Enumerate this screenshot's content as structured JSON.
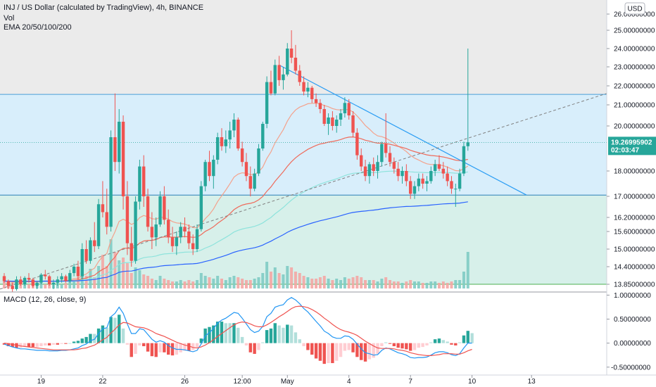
{
  "header": {
    "title": "INJ / US Dollar (calculated by TradingView), 4h, BINANCE",
    "indicator_vol": "Vol",
    "indicator_ema": "EMA 20/50/100/200",
    "currency_badge": "USD"
  },
  "macd_legend": "MACD (12, 26, close, 9)",
  "price_tag": {
    "value": "19.26995902",
    "countdown": "02:03:47"
  },
  "colors": {
    "up": "#26a69a",
    "down": "#ef5350",
    "up_light": "#b2dfdb",
    "down_light": "#ffcdd2",
    "ema20": "#f4a28c",
    "ema50": "#ef6b5b",
    "ema100": "#8ee3dc",
    "ema200": "#2962ff",
    "trend": "#2a9df4",
    "zone_top": "#e6f3fc",
    "zone_mid": "#d8eefb",
    "zone_low": "#d7f0ea",
    "macd": "#2196f3",
    "signal": "#ef5350"
  },
  "chart_data": [
    {
      "type": "candlestick",
      "title": "INJ / US Dollar (calculated by TradingView), 4h, BINANCE",
      "ylim": [
        13.6,
        26.2
      ],
      "y_ticks": [
        "26.00000000",
        "25.00000000",
        "24.00000000",
        "23.00000000",
        "22.00000000",
        "21.00000000",
        "20.00000000",
        "18.00000000",
        "17.00000000",
        "16.20000000",
        "15.60000000",
        "15.00000000",
        "14.40000000",
        "13.85000000"
      ],
      "x_ticks": [
        "19",
        "22",
        "26",
        "12:00",
        "May",
        "4",
        "7",
        "10",
        "13"
      ],
      "last_price": 19.26995902,
      "horizontal_levels": [
        21.55,
        17.05,
        13.85
      ],
      "candles": [
        [
          14.1,
          14.2,
          13.9,
          13.95
        ],
        [
          13.95,
          14.0,
          13.7,
          13.8
        ],
        [
          13.8,
          13.9,
          13.6,
          13.7
        ],
        [
          13.7,
          14.1,
          13.65,
          14.0
        ],
        [
          14.0,
          14.1,
          13.8,
          13.85
        ],
        [
          13.85,
          14.1,
          13.8,
          14.05
        ],
        [
          14.05,
          14.2,
          13.9,
          14.0
        ],
        [
          14.0,
          14.05,
          13.75,
          13.8
        ],
        [
          13.8,
          13.95,
          13.7,
          13.9
        ],
        [
          13.9,
          14.2,
          13.85,
          14.15
        ],
        [
          14.15,
          14.3,
          14.0,
          14.1
        ],
        [
          14.1,
          14.15,
          13.8,
          13.85
        ],
        [
          13.85,
          14.0,
          13.7,
          13.9
        ],
        [
          13.9,
          14.1,
          13.8,
          14.0
        ],
        [
          14.0,
          14.2,
          13.9,
          14.1
        ],
        [
          14.1,
          14.15,
          13.9,
          13.95
        ],
        [
          13.95,
          14.3,
          13.9,
          14.2
        ],
        [
          14.2,
          14.5,
          14.1,
          14.4
        ],
        [
          14.4,
          14.6,
          14.0,
          14.1
        ],
        [
          14.1,
          15.2,
          14.0,
          15.0
        ],
        [
          15.0,
          15.3,
          14.5,
          14.6
        ],
        [
          14.6,
          15.4,
          14.5,
          15.3
        ],
        [
          15.3,
          16.0,
          14.9,
          15.1
        ],
        [
          15.1,
          16.9,
          15.0,
          16.7
        ],
        [
          16.7,
          17.6,
          16.2,
          16.4
        ],
        [
          16.4,
          17.3,
          15.5,
          15.8
        ],
        [
          15.8,
          19.8,
          15.6,
          19.5
        ],
        [
          19.5,
          21.6,
          18.0,
          18.4
        ],
        [
          18.4,
          20.8,
          17.9,
          20.2
        ],
        [
          20.2,
          20.5,
          16.5,
          17.0
        ],
        [
          17.0,
          17.6,
          14.8,
          15.2
        ],
        [
          15.2,
          15.8,
          14.4,
          14.6
        ],
        [
          14.6,
          17.0,
          14.5,
          16.8
        ],
        [
          16.8,
          18.5,
          16.5,
          18.2
        ],
        [
          18.2,
          18.7,
          16.6,
          17.0
        ],
        [
          17.0,
          17.3,
          15.6,
          15.8
        ],
        [
          15.8,
          16.4,
          15.0,
          15.4
        ],
        [
          15.4,
          16.2,
          15.1,
          15.9
        ],
        [
          15.9,
          17.2,
          15.8,
          17.0
        ],
        [
          17.0,
          17.4,
          15.9,
          16.1
        ],
        [
          16.1,
          16.5,
          15.2,
          15.4
        ],
        [
          15.4,
          15.8,
          14.9,
          15.1
        ],
        [
          15.1,
          15.6,
          14.8,
          15.4
        ],
        [
          15.4,
          16.0,
          15.2,
          15.8
        ],
        [
          15.8,
          16.2,
          15.4,
          15.6
        ],
        [
          15.6,
          15.9,
          15.0,
          15.2
        ],
        [
          15.2,
          15.5,
          14.8,
          15.0
        ],
        [
          15.0,
          15.9,
          14.9,
          15.7
        ],
        [
          15.7,
          17.6,
          15.6,
          17.4
        ],
        [
          17.4,
          18.5,
          17.2,
          18.4
        ],
        [
          18.4,
          18.9,
          17.6,
          17.8
        ],
        [
          17.8,
          18.7,
          17.3,
          18.5
        ],
        [
          18.5,
          19.7,
          18.3,
          19.5
        ],
        [
          19.5,
          19.9,
          18.9,
          19.1
        ],
        [
          19.1,
          19.8,
          18.8,
          19.4
        ],
        [
          19.4,
          20.2,
          19.0,
          19.8
        ],
        [
          19.8,
          20.6,
          19.5,
          20.3
        ],
        [
          20.3,
          20.4,
          18.9,
          19.0
        ],
        [
          19.0,
          19.3,
          18.2,
          18.4
        ],
        [
          18.4,
          18.8,
          17.6,
          17.8
        ],
        [
          17.8,
          18.2,
          17.0,
          17.3
        ],
        [
          17.3,
          18.1,
          17.2,
          17.9
        ],
        [
          17.9,
          19.2,
          17.8,
          19.0
        ],
        [
          19.0,
          20.2,
          18.9,
          20.1
        ],
        [
          20.1,
          22.5,
          19.9,
          22.2
        ],
        [
          22.2,
          22.8,
          21.5,
          21.6
        ],
        [
          21.6,
          23.4,
          21.5,
          23.1
        ],
        [
          23.1,
          23.6,
          22.0,
          22.3
        ],
        [
          22.3,
          23.0,
          21.8,
          22.6
        ],
        [
          22.6,
          24.3,
          22.5,
          24.0
        ],
        [
          24.0,
          25.0,
          23.2,
          23.5
        ],
        [
          23.5,
          24.2,
          22.6,
          22.8
        ],
        [
          22.8,
          23.1,
          22.0,
          22.2
        ],
        [
          22.2,
          22.5,
          21.5,
          21.7
        ],
        [
          21.7,
          22.2,
          21.4,
          21.9
        ],
        [
          21.9,
          22.0,
          21.1,
          21.3
        ],
        [
          21.3,
          21.6,
          20.9,
          21.1
        ],
        [
          21.1,
          21.3,
          20.6,
          20.8
        ],
        [
          20.8,
          21.0,
          20.0,
          20.1
        ],
        [
          20.1,
          20.6,
          19.6,
          20.4
        ],
        [
          20.4,
          20.7,
          19.8,
          20.0
        ],
        [
          20.0,
          20.5,
          19.7,
          20.3
        ],
        [
          20.3,
          20.8,
          20.0,
          20.6
        ],
        [
          20.6,
          21.4,
          20.4,
          21.1
        ],
        [
          21.1,
          21.3,
          20.3,
          20.5
        ],
        [
          20.5,
          20.7,
          19.5,
          19.7
        ],
        [
          19.7,
          19.9,
          18.5,
          18.7
        ],
        [
          18.7,
          19.0,
          18.0,
          18.2
        ],
        [
          18.2,
          18.5,
          17.6,
          17.8
        ],
        [
          17.8,
          18.4,
          17.5,
          18.3
        ],
        [
          18.3,
          18.6,
          17.8,
          18.0
        ],
        [
          18.0,
          18.7,
          17.7,
          18.4
        ],
        [
          18.4,
          19.3,
          18.2,
          19.2
        ],
        [
          19.2,
          20.6,
          18.6,
          18.8
        ],
        [
          18.8,
          19.1,
          18.2,
          18.4
        ],
        [
          18.4,
          18.6,
          17.9,
          18.1
        ],
        [
          18.1,
          18.4,
          17.6,
          17.8
        ],
        [
          17.8,
          18.2,
          17.5,
          18.0
        ],
        [
          18.0,
          18.3,
          17.4,
          17.6
        ],
        [
          17.6,
          17.8,
          16.9,
          17.1
        ],
        [
          17.1,
          17.6,
          16.9,
          17.4
        ],
        [
          17.4,
          17.9,
          17.2,
          17.7
        ],
        [
          17.7,
          17.9,
          17.3,
          17.5
        ],
        [
          17.5,
          17.8,
          17.2,
          17.6
        ],
        [
          17.6,
          18.2,
          17.5,
          18.0
        ],
        [
          18.0,
          18.5,
          17.8,
          18.3
        ],
        [
          18.3,
          18.7,
          18.0,
          18.1
        ],
        [
          18.1,
          18.4,
          17.7,
          17.9
        ],
        [
          17.9,
          18.2,
          17.4,
          17.6
        ],
        [
          17.6,
          17.8,
          17.1,
          17.3
        ],
        [
          17.3,
          17.5,
          16.6,
          17.3
        ],
        [
          17.3,
          18.1,
          17.2,
          17.9
        ],
        [
          17.9,
          19.3,
          17.8,
          19.1
        ],
        [
          19.1,
          24.0,
          18.9,
          19.27
        ]
      ],
      "volume": [
        0.9,
        0.5,
        0.4,
        0.3,
        0.4,
        0.5,
        0.3,
        0.4,
        0.3,
        0.4,
        0.3,
        0.5,
        0.3,
        0.4,
        0.3,
        0.4,
        0.6,
        0.5,
        0.8,
        1.2,
        0.9,
        1.4,
        0.8,
        1.6,
        2.4,
        1.6,
        3.5,
        2.6,
        2.0,
        2.2,
        1.8,
        1.1,
        1.5,
        1.3,
        1.0,
        0.9,
        0.7,
        0.6,
        0.9,
        0.7,
        0.6,
        0.5,
        0.5,
        0.6,
        0.5,
        0.6,
        0.5,
        0.6,
        1.1,
        0.9,
        0.8,
        0.7,
        0.9,
        0.7,
        0.6,
        0.8,
        0.9,
        0.8,
        0.7,
        0.6,
        0.6,
        0.7,
        0.8,
        1.1,
        1.9,
        1.2,
        1.5,
        1.1,
        1.0,
        1.6,
        1.5,
        1.2,
        1.1,
        0.9,
        0.8,
        0.7,
        0.7,
        0.8,
        0.9,
        0.7,
        0.6,
        0.7,
        0.6,
        0.8,
        0.7,
        0.8,
        0.9,
        0.8,
        0.6,
        0.6,
        0.6,
        0.5,
        0.7,
        0.8,
        0.6,
        0.5,
        0.5,
        0.4,
        0.5,
        0.6,
        0.5,
        0.5,
        0.4,
        0.4,
        0.5,
        0.5,
        0.4,
        0.5,
        0.4,
        0.5,
        0.6,
        0.6,
        1.2,
        2.6,
        4.2
      ]
    },
    {
      "type": "macd",
      "title": "MACD (12, 26, close, 9)",
      "ylim": [
        -0.65,
        1.05
      ],
      "y_ticks": [
        "1.00000000",
        "0.50000000",
        "0.00000000",
        "-0.50000000"
      ],
      "macd": [
        -0.02,
        -0.05,
        -0.08,
        -0.1,
        -0.12,
        -0.12,
        -0.13,
        -0.14,
        -0.15,
        -0.15,
        -0.15,
        -0.16,
        -0.16,
        -0.16,
        -0.15,
        -0.15,
        -0.14,
        -0.12,
        -0.1,
        -0.05,
        -0.02,
        0.05,
        0.08,
        0.2,
        0.3,
        0.32,
        0.55,
        0.62,
        0.75,
        0.62,
        0.4,
        0.2,
        0.2,
        0.3,
        0.28,
        0.18,
        0.08,
        0.02,
        0.05,
        0.02,
        -0.05,
        -0.1,
        -0.13,
        -0.13,
        -0.14,
        -0.16,
        -0.18,
        -0.15,
        -0.02,
        0.15,
        0.22,
        0.3,
        0.42,
        0.48,
        0.52,
        0.58,
        0.64,
        0.62,
        0.52,
        0.4,
        0.28,
        0.22,
        0.25,
        0.35,
        0.55,
        0.62,
        0.75,
        0.78,
        0.8,
        0.9,
        0.95,
        0.9,
        0.82,
        0.72,
        0.65,
        0.55,
        0.45,
        0.36,
        0.25,
        0.2,
        0.13,
        0.1,
        0.1,
        0.15,
        0.14,
        0.08,
        -0.02,
        -0.12,
        -0.2,
        -0.22,
        -0.25,
        -0.24,
        -0.15,
        -0.1,
        -0.12,
        -0.16,
        -0.2,
        -0.22,
        -0.25,
        -0.3,
        -0.31,
        -0.3,
        -0.3,
        -0.29,
        -0.25,
        -0.2,
        -0.18,
        -0.18,
        -0.2,
        -0.24,
        -0.26,
        -0.22,
        -0.1,
        0.0,
        0.0
      ],
      "signal": [
        0.0,
        -0.01,
        -0.03,
        -0.04,
        -0.06,
        -0.07,
        -0.08,
        -0.09,
        -0.1,
        -0.11,
        -0.12,
        -0.13,
        -0.14,
        -0.14,
        -0.14,
        -0.14,
        -0.14,
        -0.14,
        -0.13,
        -0.11,
        -0.1,
        -0.07,
        -0.04,
        0.01,
        0.07,
        0.12,
        0.21,
        0.29,
        0.38,
        0.43,
        0.42,
        0.38,
        0.34,
        0.33,
        0.32,
        0.29,
        0.25,
        0.2,
        0.17,
        0.14,
        0.1,
        0.06,
        0.02,
        -0.01,
        -0.04,
        -0.06,
        -0.09,
        -0.1,
        -0.08,
        -0.04,
        0.01,
        0.07,
        0.14,
        0.2,
        0.26,
        0.32,
        0.38,
        0.42,
        0.44,
        0.43,
        0.4,
        0.36,
        0.34,
        0.34,
        0.38,
        0.43,
        0.49,
        0.55,
        0.6,
        0.66,
        0.72,
        0.76,
        0.77,
        0.76,
        0.74,
        0.7,
        0.65,
        0.59,
        0.52,
        0.46,
        0.39,
        0.33,
        0.28,
        0.25,
        0.23,
        0.2,
        0.16,
        0.1,
        0.04,
        -0.01,
        -0.06,
        -0.1,
        -0.11,
        -0.11,
        -0.11,
        -0.12,
        -0.14,
        -0.15,
        -0.17,
        -0.2,
        -0.22,
        -0.24,
        -0.25,
        -0.26,
        -0.26,
        -0.25,
        -0.24,
        -0.22,
        -0.22,
        -0.22,
        -0.23,
        -0.23,
        -0.2,
        -0.16,
        -0.13
      ]
    }
  ]
}
